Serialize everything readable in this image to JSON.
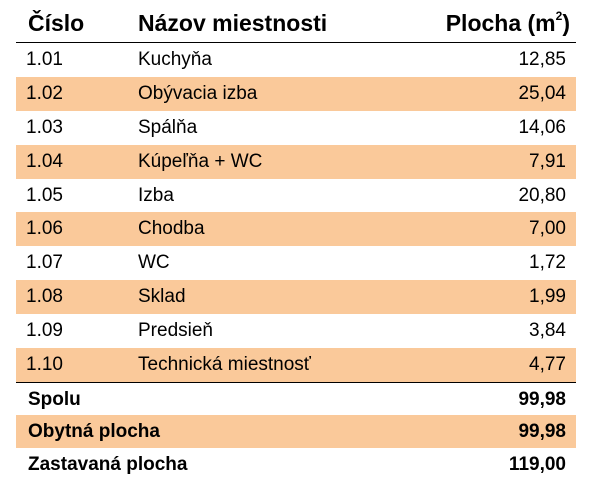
{
  "header": {
    "number_label": "Číslo",
    "name_label": "Názov miestnosti",
    "area_label_prefix": "Plocha (m",
    "area_label_sup": "2",
    "area_label_suffix": ")"
  },
  "rooms": [
    {
      "number": "1.01",
      "name": "Kuchyňa",
      "area": "12,85"
    },
    {
      "number": "1.02",
      "name": "Obývacia izba",
      "area": "25,04"
    },
    {
      "number": "1.03",
      "name": "Spálňa",
      "area": "14,06"
    },
    {
      "number": "1.04",
      "name": "Kúpeľňa + WC",
      "area": "7,91"
    },
    {
      "number": "1.05",
      "name": "Izba",
      "area": "20,80"
    },
    {
      "number": "1.06",
      "name": "Chodba",
      "area": "7,00"
    },
    {
      "number": "1.07",
      "name": "WC",
      "area": "1,72"
    },
    {
      "number": "1.08",
      "name": "Sklad",
      "area": "1,99"
    },
    {
      "number": "1.09",
      "name": "Predsieň",
      "area": "3,84"
    },
    {
      "number": "1.10",
      "name": "Technická miestnosť",
      "area": "4,77"
    }
  ],
  "summary": [
    {
      "label": "Spolu",
      "value": "99,98"
    },
    {
      "label": "Obytná plocha",
      "value": "99,98"
    },
    {
      "label": "Zastavaná plocha",
      "value": "119,00"
    }
  ],
  "colors": {
    "shaded_row": "#fac99a",
    "text": "#000000",
    "background": "#ffffff"
  }
}
